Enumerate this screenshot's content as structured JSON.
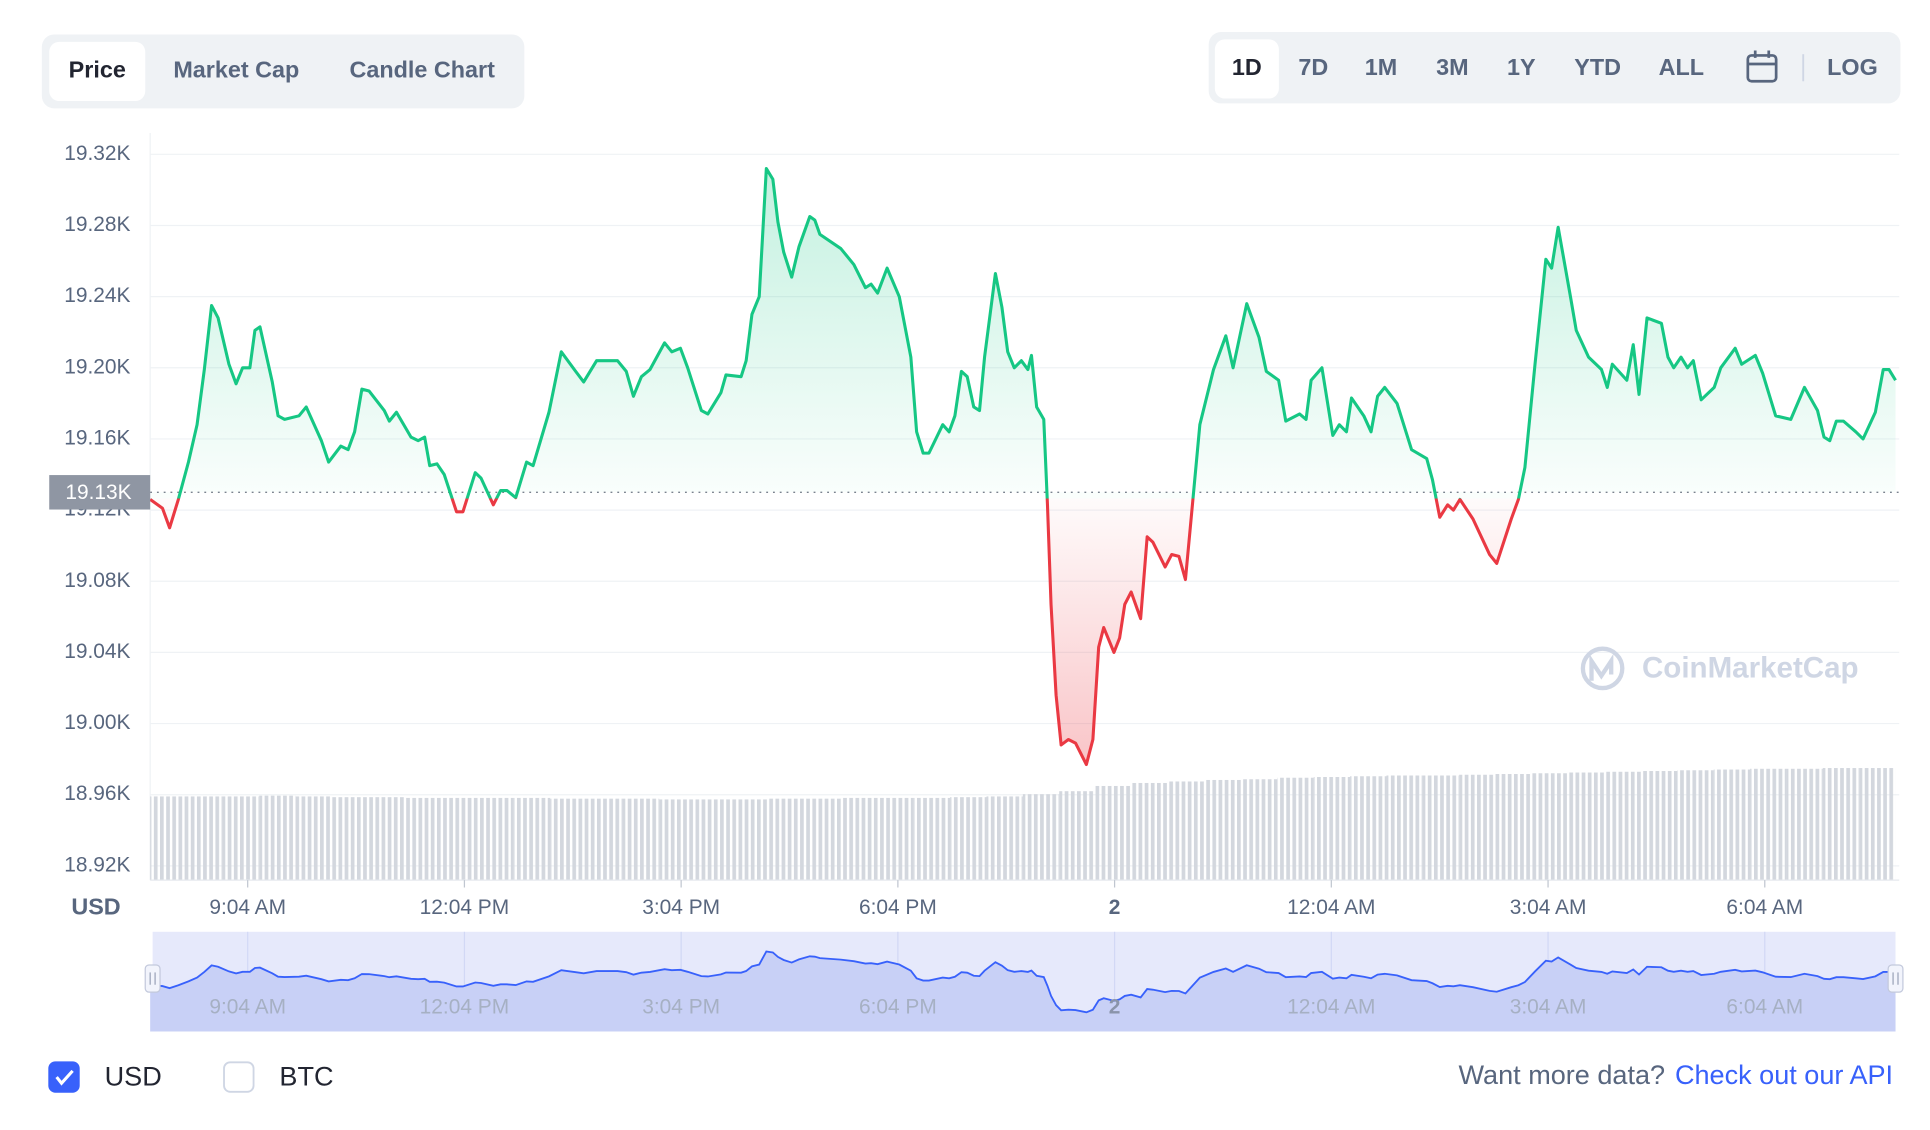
{
  "tabs": {
    "items": [
      "Price",
      "Market Cap",
      "Candle Chart"
    ],
    "active": 0
  },
  "ranges": {
    "items": [
      "1D",
      "7D",
      "1M",
      "3M",
      "1Y",
      "YTD",
      "ALL"
    ],
    "active": 0,
    "log": "LOG"
  },
  "chart_data": {
    "type": "line",
    "y_axis_label": "USD",
    "watermark": "CoinMarketCap",
    "colors": {
      "up": "#16c784",
      "down": "#ea3943",
      "navigator": "#3861fb"
    },
    "xlim": [
      7.72,
      31.88
    ],
    "xticks": [
      {
        "value": 9.07,
        "label": "9:04 AM"
      },
      {
        "value": 12.07,
        "label": "12:04 PM"
      },
      {
        "value": 15.07,
        "label": "3:04 PM"
      },
      {
        "value": 18.07,
        "label": "6:04 PM"
      },
      {
        "value": 21.07,
        "label": "2"
      },
      {
        "value": 24.07,
        "label": "12:04 AM"
      },
      {
        "value": 27.07,
        "label": "3:04 AM"
      },
      {
        "value": 30.07,
        "label": "6:04 AM"
      }
    ],
    "ylim": [
      18912,
      19332
    ],
    "yticks": [
      {
        "value": 18920,
        "label": "18.92K"
      },
      {
        "value": 18960,
        "label": "18.96K"
      },
      {
        "value": 19000,
        "label": "19.00K"
      },
      {
        "value": 19040,
        "label": "19.04K"
      },
      {
        "value": 19080,
        "label": "19.08K"
      },
      {
        "value": 19120,
        "label": "19.12K"
      },
      {
        "value": 19160,
        "label": "19.16K"
      },
      {
        "value": 19200,
        "label": "19.20K"
      },
      {
        "value": 19240,
        "label": "19.24K"
      },
      {
        "value": 19280,
        "label": "19.28K"
      },
      {
        "value": 19320,
        "label": "19.32K"
      }
    ],
    "grid": true,
    "reference": {
      "value": 19130,
      "label": "19.13K"
    },
    "x": [
      7.72,
      7.89,
      7.99,
      8.11,
      8.25,
      8.37,
      8.47,
      8.57,
      8.66,
      8.81,
      8.91,
      9.0,
      9.1,
      9.17,
      9.24,
      9.41,
      9.49,
      9.58,
      9.78,
      9.88,
      10.09,
      10.19,
      10.36,
      10.46,
      10.55,
      10.65,
      10.75,
      10.96,
      11.03,
      11.13,
      11.33,
      11.43,
      11.52,
      11.59,
      11.69,
      11.79,
      11.96,
      12.05,
      12.22,
      12.3,
      12.47,
      12.57,
      12.66,
      12.78,
      12.93,
      13.02,
      13.24,
      13.41,
      13.61,
      13.72,
      13.9,
      14.19,
      14.31,
      14.41,
      14.52,
      14.64,
      14.84,
      14.94,
      15.06,
      15.16,
      15.35,
      15.44,
      15.62,
      15.69,
      15.9,
      15.97,
      16.05,
      16.15,
      16.25,
      16.34,
      16.41,
      16.49,
      16.6,
      16.7,
      16.85,
      16.92,
      16.99,
      17.28,
      17.46,
      17.62,
      17.7,
      17.79,
      17.92,
      18.09,
      18.25,
      18.33,
      18.42,
      18.5,
      18.69,
      18.78,
      18.86,
      18.95,
      19.03,
      19.12,
      19.2,
      19.27,
      19.42,
      19.51,
      19.59,
      19.68,
      19.78,
      19.87,
      19.92,
      19.99,
      20.09,
      20.14,
      20.19,
      20.26,
      20.33,
      20.43,
      20.53,
      20.68,
      20.77,
      20.85,
      20.92,
      21.06,
      21.14,
      21.21,
      21.3,
      21.43,
      21.52,
      21.6,
      21.77,
      21.86,
      21.96,
      22.05,
      22.15,
      22.25,
      22.44,
      22.61,
      22.71,
      22.9,
      23.07,
      23.17,
      23.34,
      23.44,
      23.63,
      23.72,
      23.79,
      23.94,
      24.09,
      24.18,
      24.28,
      24.35,
      24.52,
      24.62,
      24.71,
      24.81,
      24.98,
      25.18,
      25.39,
      25.47,
      25.57,
      25.68,
      25.76,
      25.85,
      26.03,
      26.26,
      26.36,
      26.56,
      26.66,
      26.75,
      26.89,
      27.04,
      27.12,
      27.21,
      27.38,
      27.46,
      27.63,
      27.81,
      27.89,
      27.96,
      28.16,
      28.25,
      28.33,
      28.44,
      28.64,
      28.73,
      28.81,
      28.91,
      29.0,
      29.08,
      29.19,
      29.37,
      29.46,
      29.66,
      29.75,
      29.94,
      30.04,
      30.22,
      30.43,
      30.62,
      30.8,
      30.89,
      30.97,
      31.06,
      31.16,
      31.33,
      31.43,
      31.6,
      31.71,
      31.79,
      31.88
    ],
    "values": [
      19126,
      19121,
      19110,
      19126,
      19147,
      19168,
      19199,
      19235,
      19228,
      19202,
      19191,
      19200,
      19200,
      19221,
      19223,
      19192,
      19173,
      19171,
      19173,
      19178,
      19159,
      19147,
      19156,
      19154,
      19164,
      19188,
      19187,
      19176,
      19170,
      19175,
      19161,
      19159,
      19161,
      19145,
      19146,
      19140,
      19119,
      19119,
      19141,
      19138,
      19123,
      19131,
      19131,
      19127,
      19147,
      19145,
      19175,
      19209,
      19198,
      19192,
      19204,
      19204,
      19198,
      19184,
      19195,
      19199,
      19214,
      19209,
      19211,
      19200,
      19176,
      19174,
      19186,
      19196,
      19195,
      19204,
      19230,
      19240,
      19312,
      19306,
      19282,
      19265,
      19251,
      19268,
      19285,
      19283,
      19275,
      19267,
      19258,
      19245,
      19247,
      19242,
      19256,
      19240,
      19206,
      19164,
      19152,
      19152,
      19168,
      19164,
      19173,
      19198,
      19195,
      19178,
      19176,
      19206,
      19253,
      19234,
      19209,
      19200,
      19204,
      19199,
      19207,
      19178,
      19171,
      19123,
      19067,
      19016,
      18988,
      18991,
      18989,
      18977,
      18991,
      19043,
      19054,
      19040,
      19048,
      19067,
      19074,
      19059,
      19105,
      19102,
      19088,
      19095,
      19094,
      19081,
      19124,
      19168,
      19199,
      19218,
      19200,
      19236,
      19217,
      19198,
      19193,
      19170,
      19174,
      19171,
      19193,
      19200,
      19162,
      19168,
      19164,
      19183,
      19173,
      19164,
      19184,
      19189,
      19180,
      19154,
      19149,
      19137,
      19116,
      19123,
      19120,
      19126,
      19115,
      19095,
      19090,
      19115,
      19126,
      19144,
      19202,
      19261,
      19256,
      19279,
      19240,
      19221,
      19206,
      19199,
      19189,
      19202,
      19193,
      19213,
      19185,
      19228,
      19225,
      19206,
      19200,
      19206,
      19200,
      19204,
      19182,
      19189,
      19200,
      19211,
      19202,
      19207,
      19197,
      19173,
      19171,
      19189,
      19176,
      19161,
      19159,
      19170,
      19170,
      19164,
      19160,
      19175,
      19199,
      19199,
      19193
    ],
    "volume": {
      "color": "#d3d7de",
      "y2lim": [
        0,
        100
      ],
      "values": [
        11.2,
        11.2,
        11.2,
        11.3,
        11.2,
        11.1,
        11.1,
        11.0,
        11.0,
        11.0,
        11.0,
        10.9,
        10.9,
        10.9,
        10.8,
        10.8,
        10.8,
        10.9,
        10.9,
        11.0,
        11.0,
        11.0,
        11.1,
        11.2,
        11.5,
        11.9,
        12.6,
        13.0,
        13.2,
        13.4,
        13.5,
        13.7,
        13.8,
        13.9,
        14.0,
        14.0,
        14.1,
        14.2,
        14.3,
        14.4,
        14.5,
        14.6,
        14.7,
        14.8,
        14.9,
        14.9,
        15.0,
        15.0
      ]
    }
  },
  "currency_toggles": [
    {
      "label": "USD",
      "checked": true
    },
    {
      "label": "BTC",
      "checked": false
    }
  ],
  "footer": {
    "text": "Want more data?",
    "link": "Check out our API"
  }
}
